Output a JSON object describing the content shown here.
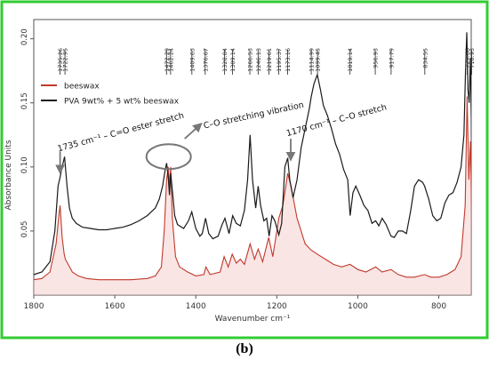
{
  "caption": "(b)",
  "chart_data": {
    "type": "line",
    "xlabel": "Wavenumber cm⁻¹",
    "ylabel": "Absorbance Units",
    "xlim": [
      1800,
      720
    ],
    "ylim": [
      0.0,
      0.215
    ],
    "x_reversed": true,
    "x_ticks": [
      "1800",
      "1600",
      "1400",
      "1200",
      "1000",
      "800"
    ],
    "y_ticks": [
      "0.05",
      "0.10",
      "0.15",
      "0.20"
    ],
    "frame_color": "#33cc33",
    "peak_labels": [
      "1735.26",
      "1722.95",
      "1472.29",
      "1462.24",
      "1409.63",
      "1376.67",
      "1328.84",
      "1309.14",
      "1266.53",
      "1246.13",
      "1219.61",
      "1195.37",
      "1173.16",
      "1114.99",
      "1099.45",
      "1019.14",
      "956.93",
      "917.79",
      "834.55",
      "729.66",
      "718.93"
    ],
    "annotations": [
      {
        "text": "1735 cm⁻¹ – C=O ester stretch",
        "x": 1735
      },
      {
        "text": "C–O stretching vibration",
        "x": 1467
      },
      {
        "text": "1170 cm⁻¹ – C–O stretch",
        "x": 1170
      }
    ],
    "series": [
      {
        "name": "beeswax",
        "color": "#c0392b",
        "x": [
          1800,
          1780,
          1760,
          1745,
          1738,
          1735,
          1730,
          1725,
          1722,
          1715,
          1705,
          1690,
          1670,
          1640,
          1600,
          1560,
          1520,
          1500,
          1485,
          1478,
          1472,
          1468,
          1465,
          1462,
          1458,
          1450,
          1440,
          1420,
          1400,
          1380,
          1375,
          1365,
          1340,
          1330,
          1320,
          1310,
          1300,
          1290,
          1280,
          1266,
          1255,
          1246,
          1235,
          1220,
          1210,
          1195,
          1185,
          1173,
          1165,
          1150,
          1130,
          1115,
          1100,
          1080,
          1060,
          1040,
          1019,
          1000,
          980,
          956,
          940,
          918,
          900,
          880,
          860,
          835,
          820,
          800,
          780,
          760,
          745,
          735,
          730,
          726,
          722,
          719,
          715,
          710,
          705,
          700
        ],
        "y": [
          0.012,
          0.013,
          0.018,
          0.04,
          0.062,
          0.07,
          0.045,
          0.032,
          0.028,
          0.024,
          0.018,
          0.015,
          0.013,
          0.012,
          0.012,
          0.012,
          0.013,
          0.015,
          0.022,
          0.05,
          0.09,
          0.1,
          0.085,
          0.1,
          0.06,
          0.03,
          0.022,
          0.018,
          0.015,
          0.016,
          0.022,
          0.016,
          0.018,
          0.03,
          0.022,
          0.032,
          0.025,
          0.028,
          0.024,
          0.04,
          0.028,
          0.036,
          0.026,
          0.045,
          0.03,
          0.06,
          0.07,
          0.095,
          0.085,
          0.06,
          0.04,
          0.035,
          0.032,
          0.028,
          0.024,
          0.022,
          0.024,
          0.02,
          0.018,
          0.022,
          0.018,
          0.02,
          0.016,
          0.014,
          0.014,
          0.016,
          0.014,
          0.014,
          0.016,
          0.02,
          0.03,
          0.07,
          0.155,
          0.09,
          0.12,
          0.065,
          0.035,
          0.02,
          0.016,
          0.015
        ]
      },
      {
        "name": "PVA 9wt% + 5 wt% beeswax",
        "color": "#1a1a1a",
        "x": [
          1800,
          1780,
          1760,
          1748,
          1740,
          1735,
          1730,
          1724,
          1718,
          1712,
          1705,
          1695,
          1680,
          1660,
          1640,
          1620,
          1600,
          1580,
          1560,
          1540,
          1520,
          1500,
          1490,
          1482,
          1476,
          1472,
          1468,
          1465,
          1462,
          1458,
          1452,
          1445,
          1430,
          1418,
          1410,
          1400,
          1390,
          1384,
          1376,
          1368,
          1358,
          1345,
          1335,
          1328,
          1318,
          1309,
          1300,
          1290,
          1280,
          1272,
          1266,
          1260,
          1252,
          1246,
          1240,
          1232,
          1225,
          1219,
          1212,
          1205,
          1195,
          1188,
          1180,
          1173,
          1168,
          1160,
          1150,
          1140,
          1130,
          1120,
          1115,
          1108,
          1100,
          1092,
          1085,
          1075,
          1065,
          1055,
          1045,
          1035,
          1025,
          1019,
          1012,
          1005,
          995,
          985,
          975,
          965,
          956,
          948,
          940,
          930,
          918,
          910,
          900,
          890,
          880,
          870,
          860,
          850,
          840,
          835,
          825,
          815,
          805,
          795,
          785,
          775,
          765,
          755,
          745,
          738,
          734,
          731,
          728,
          725,
          722,
          719,
          715,
          710,
          705,
          700
        ],
        "y": [
          0.016,
          0.018,
          0.026,
          0.05,
          0.085,
          0.092,
          0.1,
          0.108,
          0.085,
          0.068,
          0.06,
          0.056,
          0.053,
          0.052,
          0.051,
          0.051,
          0.052,
          0.053,
          0.055,
          0.058,
          0.062,
          0.068,
          0.075,
          0.085,
          0.097,
          0.103,
          0.092,
          0.078,
          0.095,
          0.082,
          0.062,
          0.055,
          0.052,
          0.058,
          0.065,
          0.052,
          0.046,
          0.048,
          0.06,
          0.048,
          0.044,
          0.046,
          0.055,
          0.06,
          0.048,
          0.062,
          0.056,
          0.054,
          0.066,
          0.09,
          0.125,
          0.09,
          0.068,
          0.085,
          0.07,
          0.058,
          0.06,
          0.046,
          0.062,
          0.058,
          0.047,
          0.056,
          0.1,
          0.107,
          0.09,
          0.076,
          0.09,
          0.115,
          0.13,
          0.145,
          0.155,
          0.165,
          0.172,
          0.16,
          0.148,
          0.14,
          0.13,
          0.118,
          0.11,
          0.098,
          0.09,
          0.062,
          0.08,
          0.085,
          0.078,
          0.07,
          0.066,
          0.056,
          0.058,
          0.054,
          0.06,
          0.055,
          0.046,
          0.045,
          0.05,
          0.05,
          0.048,
          0.065,
          0.085,
          0.09,
          0.088,
          0.085,
          0.075,
          0.062,
          0.058,
          0.06,
          0.072,
          0.078,
          0.08,
          0.088,
          0.1,
          0.125,
          0.175,
          0.205,
          0.16,
          0.15,
          0.185,
          0.12,
          0.06,
          0.03,
          0.022,
          0.02
        ]
      }
    ]
  }
}
